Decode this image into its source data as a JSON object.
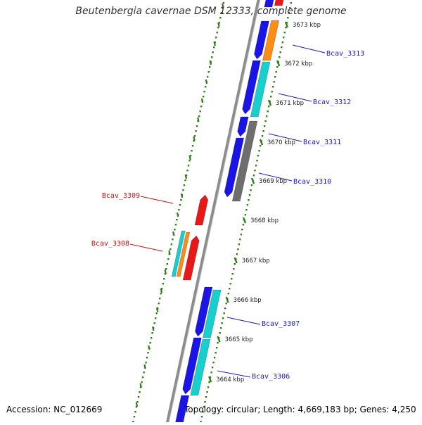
{
  "title": "Beutenbergia cavernae DSM 12333, complete genome",
  "footer": {
    "accession": "Accession: NC_012669",
    "topology": "Topology: circular; Length: 4,669,183 bp; Genes: 4,250"
  },
  "colors": {
    "backbone": "#8c8c8c",
    "tick": "#2e7d18",
    "forward_label": "#1a1acc",
    "reverse_label": "#cc1111",
    "cds_blue": "#1a14e6",
    "cds_cyan": "#18cfd0",
    "cds_orange": "#ff8c14",
    "cds_grey": "#6e6e6e",
    "cds_red": "#e81818"
  },
  "ticks": [
    {
      "label": "3673 kbp",
      "pos": 3673
    },
    {
      "label": "3672 kbp",
      "pos": 3672
    },
    {
      "label": "3671 kbp",
      "pos": 3671
    },
    {
      "label": "3670 kbp",
      "pos": 3670
    },
    {
      "label": "3669 kbp",
      "pos": 3669
    },
    {
      "label": "3668 kbp",
      "pos": 3668
    },
    {
      "label": "3667 kbp",
      "pos": 3667
    },
    {
      "label": "3666 kbp",
      "pos": 3666
    },
    {
      "label": "3665 kbp",
      "pos": 3665
    },
    {
      "label": "3664 kbp",
      "pos": 3664
    }
  ],
  "gene_labels": [
    {
      "name": "Bcav_3313",
      "strand": "forward"
    },
    {
      "name": "Bcav_3312",
      "strand": "forward"
    },
    {
      "name": "Bcav_3311",
      "strand": "forward"
    },
    {
      "name": "Bcav_3310",
      "strand": "forward"
    },
    {
      "name": "Bcav_3309",
      "strand": "reverse"
    },
    {
      "name": "Bcav_3308",
      "strand": "reverse"
    },
    {
      "name": "Bcav_3307",
      "strand": "forward"
    },
    {
      "name": "Bcav_3306",
      "strand": "forward"
    }
  ]
}
